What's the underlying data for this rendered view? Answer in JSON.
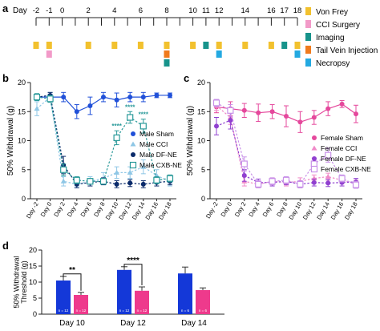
{
  "panel_a": {
    "letter": "a",
    "timeline": {
      "axis_label": "Day",
      "days": [
        "-2",
        "-1",
        "0",
        "1",
        "2",
        "3",
        "4",
        "5",
        "6",
        "7",
        "8",
        "9",
        "10",
        "11",
        "12",
        "13",
        "14",
        "15",
        "16",
        "17",
        "18"
      ],
      "labeled_days": [
        "-2",
        "-1",
        "0",
        "2",
        "4",
        "6",
        "8",
        "10",
        "11",
        "12",
        "14",
        "16",
        "17",
        "18"
      ],
      "events": [
        {
          "day": "-2",
          "type": "von_frey"
        },
        {
          "day": "-1",
          "type": "von_frey"
        },
        {
          "day": "-1",
          "type": "cci_surgery"
        },
        {
          "day": "2",
          "type": "von_frey"
        },
        {
          "day": "4",
          "type": "von_frey"
        },
        {
          "day": "6",
          "type": "von_frey"
        },
        {
          "day": "8",
          "type": "von_frey"
        },
        {
          "day": "8",
          "type": "tail_vein"
        },
        {
          "day": "8",
          "type": "imaging"
        },
        {
          "day": "10",
          "type": "von_frey"
        },
        {
          "day": "11",
          "type": "imaging"
        },
        {
          "day": "12",
          "type": "von_frey"
        },
        {
          "day": "12",
          "type": "necropsy"
        },
        {
          "day": "14",
          "type": "von_frey"
        },
        {
          "day": "16",
          "type": "von_frey"
        },
        {
          "day": "17",
          "type": "imaging"
        },
        {
          "day": "18",
          "type": "von_frey"
        },
        {
          "day": "18",
          "type": "necropsy"
        }
      ]
    },
    "legend": [
      {
        "key": "von_frey",
        "label": "Von Frey",
        "color": "#f2c12e"
      },
      {
        "key": "cci_surgery",
        "label": "CCI Surgery",
        "color": "#f29ac8"
      },
      {
        "key": "imaging",
        "label": "Imaging",
        "color": "#17938b"
      },
      {
        "key": "tail_vein",
        "label": "Tail Vein Injection",
        "color": "#f07b1d"
      },
      {
        "key": "necropsy",
        "label": "Necropsy",
        "color": "#23a9e1"
      }
    ]
  },
  "chart_data": [
    {
      "panel": "b",
      "type": "line",
      "ylabel": "50% Withdrawal (g)",
      "ylim": [
        0,
        20
      ],
      "yticks": [
        0,
        5,
        10,
        15,
        20
      ],
      "categories": [
        "Day -2",
        "Day 0",
        "Day 2",
        "Day 4",
        "Day 6",
        "Day 8",
        "Day 10",
        "Day 12",
        "Day 14",
        "Day 16",
        "Day 18"
      ],
      "legend_position": "right",
      "significance": [
        {
          "category": "Day 10",
          "label": "****"
        },
        {
          "category": "Day 12",
          "label": "****"
        },
        {
          "category": "Day 14",
          "label": "****"
        }
      ],
      "series": [
        {
          "name": "Male Sham",
          "color": "#2050d8",
          "style": "solid",
          "marker": "circle",
          "values": [
            17.5,
            17.5,
            17.5,
            15,
            16,
            17.5,
            17,
            17.5,
            17.5,
            17.8,
            17.8
          ],
          "errors": [
            0.5,
            0.5,
            0.8,
            1.2,
            1.5,
            0.8,
            1.2,
            0.8,
            0.8,
            0.4,
            0.4
          ]
        },
        {
          "name": "Male CCI",
          "color": "#8fc7e6",
          "style": "dashed",
          "marker": "triangle",
          "values": [
            15.5,
            17.5,
            3,
            2.5,
            3,
            3.5,
            4.5,
            4.5,
            5.5,
            4,
            3
          ],
          "errors": [
            1.2,
            0.8,
            0.8,
            0.6,
            0.8,
            1.0,
            1.0,
            1.0,
            1.2,
            1.0,
            0.8
          ]
        },
        {
          "name": "Male DF-NE",
          "color": "#0a2a6a",
          "style": "dashed",
          "marker": "circle",
          "values": [
            17.5,
            17.8,
            5.8,
            2.5,
            2.8,
            3,
            2.5,
            2.7,
            2.5,
            2.8,
            3
          ],
          "errors": [
            0.5,
            0.5,
            1.5,
            0.6,
            0.6,
            0.6,
            0.6,
            0.6,
            0.6,
            0.6,
            0.6
          ]
        },
        {
          "name": "Male CXB-NE",
          "color": "#2a9a9a",
          "style": "dashed",
          "marker": "open-square",
          "values": [
            17.5,
            17.2,
            5,
            3.2,
            3,
            3,
            10.5,
            14,
            12.5,
            3.2,
            3.5
          ],
          "errors": [
            0.6,
            0.6,
            1.0,
            0.6,
            0.5,
            0.5,
            1.2,
            1.0,
            1.2,
            0.6,
            0.6
          ]
        }
      ]
    },
    {
      "panel": "c",
      "type": "line",
      "ylabel": "50% Withdrawal (g)",
      "ylim": [
        0,
        20
      ],
      "yticks": [
        0,
        5,
        10,
        15,
        20
      ],
      "categories": [
        "Day -2",
        "Day 0",
        "Day 2",
        "Day 4",
        "Day 6",
        "Day 8",
        "Day 10",
        "Day 12",
        "Day 14",
        "Day 16",
        "Day 18"
      ],
      "legend_position": "right",
      "series": [
        {
          "name": "Female Sham",
          "color": "#e5489c",
          "style": "solid",
          "marker": "circle",
          "values": [
            15.8,
            15.5,
            15.2,
            14.8,
            15,
            14.2,
            13.2,
            14,
            15.5,
            16.3,
            14.6
          ],
          "errors": [
            1.0,
            1.2,
            1.2,
            1.5,
            1.2,
            1.8,
            1.8,
            1.2,
            1.2,
            0.6,
            1.5
          ]
        },
        {
          "name": "Female CCI",
          "color": "#f08ac8",
          "style": "dashed",
          "marker": "triangle",
          "values": [
            16,
            14,
            3,
            2.5,
            3,
            2.8,
            3,
            3.5,
            3.8,
            3.2,
            2.6
          ],
          "errors": [
            0.8,
            1.2,
            0.8,
            0.6,
            0.6,
            0.6,
            0.6,
            0.6,
            0.6,
            0.6,
            0.6
          ]
        },
        {
          "name": "Female DF-NE",
          "color": "#9040d0",
          "style": "dashed",
          "marker": "circle",
          "values": [
            12.5,
            13.5,
            4,
            2.8,
            2.8,
            3,
            2.5,
            2.8,
            2.7,
            2.8,
            2.9
          ],
          "errors": [
            1.5,
            1.5,
            1.0,
            0.6,
            0.6,
            0.6,
            0.6,
            0.6,
            0.6,
            0.6,
            0.6
          ]
        },
        {
          "name": "Female CXB-NE",
          "color": "#c890e8",
          "style": "dashed",
          "marker": "open-square",
          "values": [
            16.5,
            15.2,
            6,
            2.5,
            3,
            3.2,
            2.5,
            6,
            7.5,
            3.5,
            2.4
          ],
          "errors": [
            0.6,
            1.0,
            1.2,
            0.6,
            0.6,
            0.6,
            0.6,
            1.0,
            1.2,
            0.6,
            0.6
          ]
        }
      ]
    },
    {
      "panel": "d",
      "type": "bar",
      "ylabel": "50% Withdrawal Threshold (g)",
      "ylim": [
        0,
        20
      ],
      "yticks": [
        0,
        5,
        10,
        15,
        20
      ],
      "categories": [
        "Day 10",
        "Day 12",
        "Day 14"
      ],
      "series": [
        {
          "name": "",
          "color": "#1438d8",
          "values": [
            10.5,
            13.8,
            12.7
          ],
          "errors": [
            1.3,
            1.0,
            2.0
          ],
          "n_labels": [
            "n = 12",
            "n = 12",
            "n = 6"
          ]
        },
        {
          "name": "",
          "color": "#ee3a8c",
          "values": [
            6.0,
            7.3,
            7.5
          ],
          "errors": [
            0.8,
            1.2,
            0.7
          ],
          "n_labels": [
            "n = 12",
            "n = 12",
            "n = 6"
          ]
        }
      ],
      "significance": [
        {
          "category": "Day 10",
          "label": "**"
        },
        {
          "category": "Day 12",
          "label": "****"
        }
      ]
    }
  ]
}
